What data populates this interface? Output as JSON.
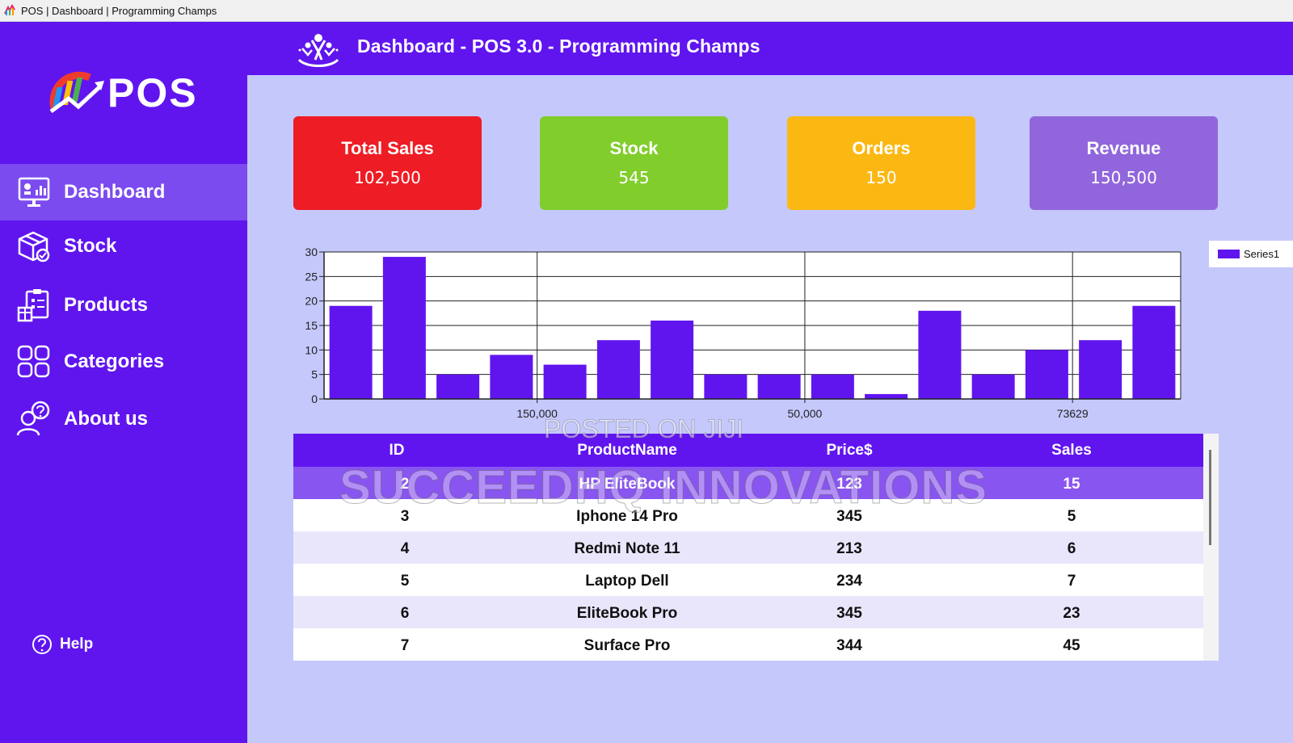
{
  "window": {
    "title": "POS | Dashboard | Programming Champs"
  },
  "header": {
    "title": "Dashboard - POS 3.0 - Programming Champs"
  },
  "logo": {
    "text": "POS"
  },
  "sidebar": {
    "items": [
      {
        "label": "Dashboard",
        "icon": "dashboard-icon",
        "active": true
      },
      {
        "label": "Stock",
        "icon": "stock-box-icon"
      },
      {
        "label": "Products",
        "icon": "products-clipboard-icon"
      },
      {
        "label": "Categories",
        "icon": "categories-grid-icon"
      },
      {
        "label": "About us",
        "icon": "about-us-users-icon"
      }
    ],
    "help_label": "Help"
  },
  "cards": [
    {
      "title": "Total Sales",
      "value": "102,500",
      "color": "#ee1c25"
    },
    {
      "title": "Stock",
      "value": "545",
      "color": "#81cd2c"
    },
    {
      "title": "Orders",
      "value": "150",
      "color": "#fbb812"
    },
    {
      "title": "Revenue",
      "value": "150,500",
      "color": "#9166dc"
    }
  ],
  "chart_data": {
    "type": "bar",
    "x_tick_labels": [
      "150,000",
      "50,000",
      "73629"
    ],
    "series": [
      {
        "name": "Series1",
        "color": "#6015ef",
        "values": [
          19,
          29,
          5,
          9,
          7,
          12,
          16,
          5,
          5,
          5,
          1,
          18,
          5,
          10,
          12,
          19
        ]
      }
    ],
    "ylim": [
      0,
      30
    ],
    "yticks": [
      0,
      5,
      10,
      15,
      20,
      25,
      30
    ],
    "grid": true,
    "legend": "top-right"
  },
  "table": {
    "columns": [
      "ID",
      "ProductName",
      "Price$",
      "Sales"
    ],
    "rows": [
      [
        "2",
        "HP EliteBook",
        "123",
        "15"
      ],
      [
        "3",
        "Iphone 14 Pro",
        "345",
        "5"
      ],
      [
        "4",
        "Redmi Note 11",
        "213",
        "6"
      ],
      [
        "5",
        "Laptop Dell",
        "234",
        "7"
      ],
      [
        "6",
        "EliteBook Pro",
        "345",
        "23"
      ],
      [
        "7",
        "Surface Pro",
        "344",
        "45"
      ]
    ],
    "selected_row": 0
  },
  "watermarks": [
    "POSTED ON JIJI",
    "SUCCEEDHQ INNOVATIONS"
  ]
}
